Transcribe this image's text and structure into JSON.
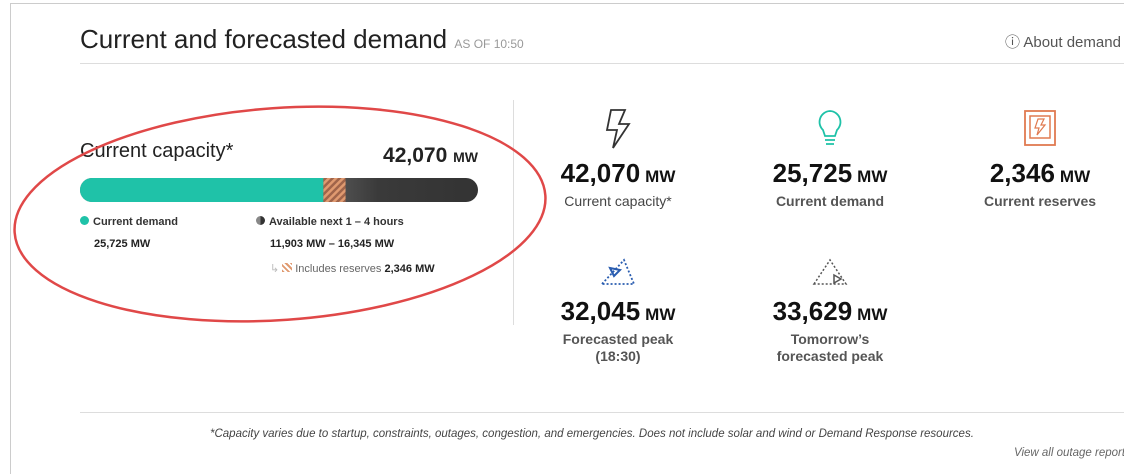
{
  "header": {
    "title": "Current and forecasted demand",
    "as_of": "AS OF 10:50",
    "about": "About demand"
  },
  "capacity": {
    "label": "Current capacity*",
    "value": "42,070",
    "unit": "MW",
    "demand": {
      "label": "Current demand",
      "value": "25,725 MW"
    },
    "available": {
      "label": "Available next 1 – 4 hours",
      "value": "11,903 MW – 16,345 MW"
    },
    "reserves": {
      "label": "Includes reserves",
      "value": "2,346 MW"
    }
  },
  "tiles": [
    {
      "value": "42,070",
      "unit": "MW",
      "label": "Current capacity*"
    },
    {
      "value": "25,725",
      "unit": "MW",
      "label": "Current demand"
    },
    {
      "value": "2,346",
      "unit": "MW",
      "label": "Current reserves"
    },
    {
      "value": "32,045",
      "unit": "MW",
      "label": "Forecasted peak",
      "sublabel": "(18:30)"
    },
    {
      "value": "33,629",
      "unit": "MW",
      "label": "Tomorrow’s forecasted peak"
    }
  ],
  "footer": {
    "note": "*Capacity varies due to startup, constraints, outages, congestion, and emergencies. Does not include solar and wind or Demand Response resources.",
    "link": "View all outage reports"
  }
}
